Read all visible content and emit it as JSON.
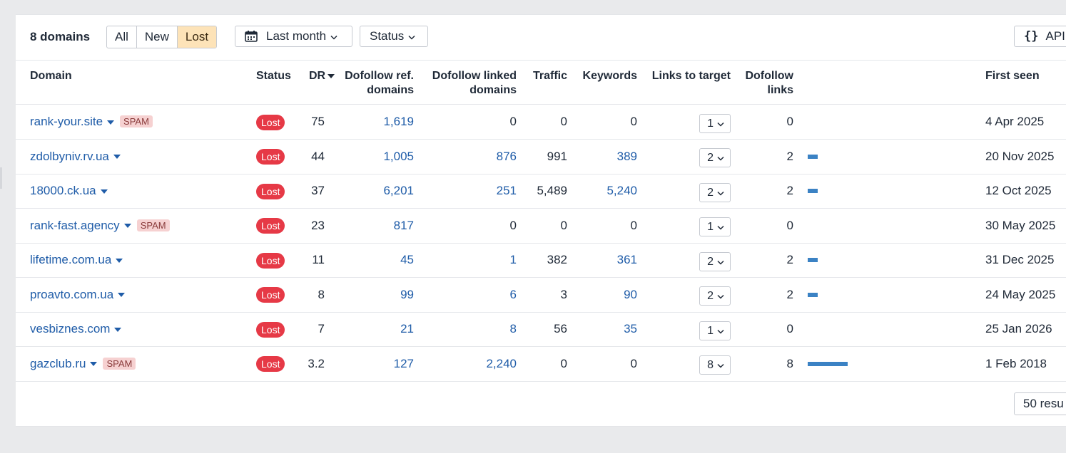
{
  "toolbar": {
    "count_label": "8 domains",
    "filter_options": [
      "All",
      "New",
      "Lost"
    ],
    "active_filter": "Lost",
    "date_filter": "Last month",
    "status_filter": "Status",
    "api_label": "API"
  },
  "columns": {
    "domain": "Domain",
    "status": "Status",
    "dr": "DR",
    "dofollow_ref_1": "Dofollow ref.",
    "dofollow_ref_2": "domains",
    "dofollow_linked_1": "Dofollow linked",
    "dofollow_linked_2": "domains",
    "traffic": "Traffic",
    "keywords": "Keywords",
    "links_to_target": "Links to target",
    "dofollow_links_1": "Dofollow",
    "dofollow_links_2": "links",
    "first_seen": "First seen"
  },
  "rows": [
    {
      "domain": "rank-your.site",
      "spam": "SPAM",
      "status": "Lost",
      "dr": "75",
      "ref_domains": "1,619",
      "linked_domains": "0",
      "traffic": "0",
      "keywords": "0",
      "links_to_target": "1",
      "dofollow_links": "0",
      "first_seen": "4 Apr 2025"
    },
    {
      "domain": "zdolbyniv.rv.ua",
      "spam": "",
      "status": "Lost",
      "dr": "44",
      "ref_domains": "1,005",
      "linked_domains": "876",
      "traffic": "991",
      "keywords": "389",
      "links_to_target": "2",
      "dofollow_links": "2",
      "first_seen": "20 Nov 2025"
    },
    {
      "domain": "18000.ck.ua",
      "spam": "",
      "status": "Lost",
      "dr": "37",
      "ref_domains": "6,201",
      "linked_domains": "251",
      "traffic": "5,489",
      "keywords": "5,240",
      "links_to_target": "2",
      "dofollow_links": "2",
      "first_seen": "12 Oct 2025"
    },
    {
      "domain": "rank-fast.agency",
      "spam": "SPAM",
      "status": "Lost",
      "dr": "23",
      "ref_domains": "817",
      "linked_domains": "0",
      "traffic": "0",
      "keywords": "0",
      "links_to_target": "1",
      "dofollow_links": "0",
      "first_seen": "30 May 2025"
    },
    {
      "domain": "lifetime.com.ua",
      "spam": "",
      "status": "Lost",
      "dr": "11",
      "ref_domains": "45",
      "linked_domains": "1",
      "traffic": "382",
      "keywords": "361",
      "links_to_target": "2",
      "dofollow_links": "2",
      "first_seen": "31 Dec 2025"
    },
    {
      "domain": "proavto.com.ua",
      "spam": "",
      "status": "Lost",
      "dr": "8",
      "ref_domains": "99",
      "linked_domains": "6",
      "traffic": "3",
      "keywords": "90",
      "links_to_target": "2",
      "dofollow_links": "2",
      "first_seen": "24 May 2025"
    },
    {
      "domain": "vesbiznes.com",
      "spam": "",
      "status": "Lost",
      "dr": "7",
      "ref_domains": "21",
      "linked_domains": "8",
      "traffic": "56",
      "keywords": "35",
      "links_to_target": "1",
      "dofollow_links": "0",
      "first_seen": "25 Jan 2026"
    },
    {
      "domain": "gazclub.ru",
      "spam": "SPAM",
      "status": "Lost",
      "dr": "3.2",
      "ref_domains": "127",
      "linked_domains": "2,240",
      "traffic": "0",
      "keywords": "0",
      "links_to_target": "8",
      "dofollow_links": "8",
      "first_seen": "1 Feb 2018"
    }
  ],
  "pagination": {
    "results_label": "50 resu"
  },
  "colors": {
    "link": "#1f5ca8",
    "lost_badge": "#e63946",
    "spam_badge": "#f6d1d1",
    "active_filter_bg": "#fde3b8",
    "bar": "#3b82c4"
  }
}
